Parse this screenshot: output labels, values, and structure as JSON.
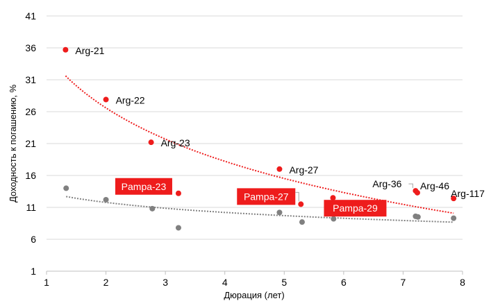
{
  "chart_data": {
    "type": "scatter",
    "xlabel": "Дюрация (лет)",
    "ylabel": "Доходность к погашению, %",
    "xlim": [
      1,
      8
    ],
    "ylim": [
      1,
      41
    ],
    "xticks": [
      1,
      2,
      3,
      4,
      5,
      6,
      7,
      8
    ],
    "yticks": [
      1,
      6,
      11,
      16,
      21,
      26,
      31,
      36,
      41
    ],
    "grid": "horizontal",
    "colors": {
      "red": "#ee1c1c",
      "gray": "#808080",
      "label_box": "#ee1c1c"
    },
    "series": [
      {
        "color": "#ee1c1c",
        "trendline": "logarithmic",
        "points": [
          {
            "label": "Arg-21",
            "x": 1.32,
            "y": 35.7,
            "highlight": false
          },
          {
            "label": "Arg-22",
            "x": 2.0,
            "y": 27.9,
            "highlight": false
          },
          {
            "label": "Arg-23",
            "x": 2.76,
            "y": 21.2,
            "highlight": false
          },
          {
            "label": "Pampa-23",
            "x": 3.22,
            "y": 13.2,
            "highlight": true
          },
          {
            "label": "Arg-27",
            "x": 4.92,
            "y": 17.0,
            "highlight": false
          },
          {
            "label": "Pampa-27",
            "x": 5.28,
            "y": 11.5,
            "highlight": true
          },
          {
            "label": "Pampa-29",
            "x": 5.82,
            "y": 12.5,
            "highlight": true
          },
          {
            "label": "Arg-36",
            "x": 7.21,
            "y": 13.6,
            "highlight": false
          },
          {
            "label": "Arg-46",
            "x": 7.24,
            "y": 13.3,
            "highlight": false
          },
          {
            "label": "Arg-117",
            "x": 7.85,
            "y": 12.4,
            "highlight": false
          }
        ]
      },
      {
        "color": "#808080",
        "trendline": "logarithmic",
        "points": [
          {
            "x": 1.33,
            "y": 14.0
          },
          {
            "x": 2.0,
            "y": 12.2
          },
          {
            "x": 2.78,
            "y": 10.8
          },
          {
            "x": 3.22,
            "y": 7.8
          },
          {
            "x": 4.92,
            "y": 10.2
          },
          {
            "x": 5.3,
            "y": 8.7
          },
          {
            "x": 5.83,
            "y": 9.2
          },
          {
            "x": 7.21,
            "y": 9.6
          },
          {
            "x": 7.25,
            "y": 9.5
          },
          {
            "x": 7.85,
            "y": 9.3
          }
        ]
      }
    ]
  }
}
